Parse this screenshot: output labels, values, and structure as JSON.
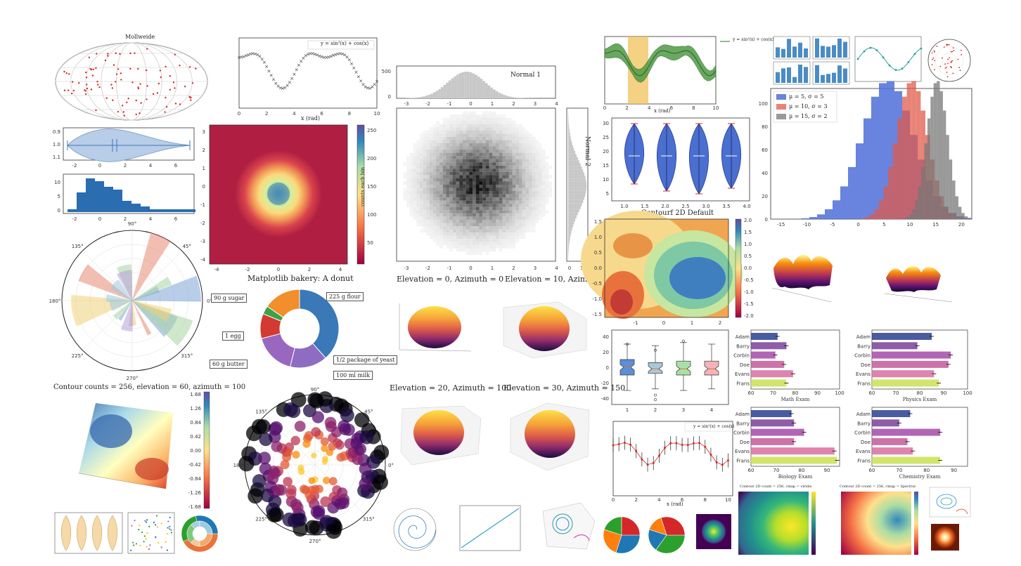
{
  "captions": {
    "mollweide": "Mollweide",
    "normal1": "Normal 1",
    "normal2": "Normal 2",
    "contourf": "Contourf 2D Default",
    "bakery": "Matplotlib bakery: A donut",
    "elev0": "Elevation = 0, Azimuth = 0",
    "elev10": "Elevation = 10, Azimuth = 50",
    "elev20": "Elevation = 20, Azimuth = 100",
    "elev30": "Elevation = 30, Azimuth = 150",
    "contour_counts": "Contour counts = 256, elevation = 60, azimuth = 100",
    "xrad": "x (rad)",
    "colorbar_label": "counts each bin"
  },
  "chart_data": [
    {
      "id": "line-cos",
      "type": "scatter",
      "legend": "y = sin²(x) + cos(x)",
      "xlabel": "x (rad)",
      "xlim": [
        0,
        10
      ],
      "ylim": [
        -2,
        2.5
      ],
      "xticks": [
        "0",
        "2",
        "4",
        "6",
        "8",
        "10"
      ]
    },
    {
      "id": "band-plot",
      "type": "area",
      "legend": "y = sin²(x) + cos(x)",
      "xlabel": "x (rad)",
      "xticks": [
        "0",
        "2",
        "4",
        "6",
        "8",
        "10"
      ]
    },
    {
      "id": "violin-horizontal",
      "type": "violin",
      "yticks": [
        "0.9",
        "1.0",
        "1.1"
      ],
      "xticks": [
        "-2",
        "0",
        "2",
        "4",
        "6"
      ]
    },
    {
      "id": "hist-skewed",
      "type": "bar",
      "yticks": [
        "0",
        "5",
        "10"
      ],
      "xticks": [
        "-2",
        "0",
        "2",
        "4",
        "6"
      ],
      "values": [
        1,
        7,
        12,
        11,
        9,
        8,
        4,
        3,
        2,
        1,
        1,
        1,
        1,
        1
      ]
    },
    {
      "id": "hexbin-donut",
      "type": "heatmap",
      "colorbar_label": "counts each bin",
      "colorbar_ticks": [
        "250",
        "200",
        "150",
        "100",
        "50"
      ],
      "xticks": [
        "-4",
        "-2",
        "0",
        "2",
        "4"
      ],
      "yticks": [
        "3",
        "2",
        "1",
        "0",
        "-1",
        "-2",
        "-3",
        "-4"
      ]
    },
    {
      "id": "normal-hist",
      "type": "bar",
      "title": "Normal 1",
      "yticks": [
        "500",
        "0"
      ],
      "xticks": [
        "-3",
        "-2",
        "-1",
        "0",
        "1",
        "2",
        "3",
        "4"
      ]
    },
    {
      "id": "normal-hist-side",
      "type": "bar",
      "title": "Normal 2",
      "xticks": [
        "0",
        "500"
      ]
    },
    {
      "id": "violin-vertical",
      "type": "violin",
      "yticks": [
        "30",
        "25",
        "20",
        "15",
        "10",
        "5"
      ],
      "xticks": [
        "1.0",
        "1.5",
        "2.0",
        "2.5",
        "3.0",
        "3.5",
        "4.0"
      ]
    },
    {
      "id": "hist-overlap",
      "type": "bar",
      "series": [
        {
          "name": "μ = 5, σ = 5",
          "color": "#4e6fd8"
        },
        {
          "name": "μ = 10, σ = 3",
          "color": "#e05a4a"
        },
        {
          "name": "μ = 15, σ = 2",
          "color": "#777777"
        }
      ],
      "yticks": [
        "100",
        "80",
        "60",
        "40",
        "20",
        "0"
      ],
      "xticks": [
        "-15",
        "-10",
        "-5",
        "0",
        "5",
        "10",
        "15",
        "20"
      ]
    },
    {
      "id": "polar-bars",
      "type": "bar",
      "angle_ticks": [
        "90°",
        "45°",
        "0°",
        "315°",
        "270°",
        "225°",
        "180°",
        "135°"
      ]
    },
    {
      "id": "donut",
      "type": "pie",
      "title": "Matplotlib bakery: A donut",
      "labels": [
        "225 g flour",
        "1/2 package of yeast",
        "100 ml milk",
        "60 g butter",
        "1 egg",
        "90 g sugar"
      ],
      "values": [
        225,
        90,
        100,
        60,
        1,
        90
      ]
    },
    {
      "id": "contourf-2d",
      "type": "heatmap",
      "title": "Contourf 2D Default",
      "colorbar_ticks": [
        "2.0",
        "1.5",
        "1.0",
        "0.5",
        "0.0",
        "-0.5",
        "-1.0",
        "-1.5",
        "-2.0"
      ],
      "xticks": [
        "-1",
        "0",
        "1",
        "2"
      ],
      "yticks": [
        "1.5",
        "1.0",
        "0.5",
        "0.0",
        "-0.5",
        "-1.0",
        "-1.5"
      ]
    },
    {
      "id": "boxplot",
      "type": "box",
      "yticks": [
        "40",
        "20",
        "0",
        "-20",
        "-40"
      ],
      "xticks": [
        "1",
        "2",
        "3",
        "4"
      ]
    },
    {
      "id": "bars-math",
      "type": "bar",
      "title": "Math Exam",
      "categories": [
        "Adam",
        "Barry",
        "Corbin",
        "Doe",
        "Evans",
        "Frans"
      ],
      "values": [
        72,
        76,
        71,
        75,
        79,
        76
      ],
      "xticks": [
        "60",
        "70",
        "80",
        "90",
        "100"
      ]
    },
    {
      "id": "bars-physics",
      "type": "bar",
      "title": "Physics Exam",
      "categories": [
        "Adam",
        "Barry",
        "Corbin",
        "Doe",
        "Evans",
        "Frans"
      ],
      "values": [
        85,
        79,
        93,
        92,
        86,
        88
      ],
      "xticks": [
        "60",
        "70",
        "80",
        "90",
        "100"
      ]
    },
    {
      "id": "bars-biology",
      "type": "bar",
      "title": "Biology Exam",
      "categories": [
        "Adam",
        "Barry",
        "Corbin",
        "Doe",
        "Evans",
        "Frans"
      ],
      "values": [
        76,
        77,
        81,
        77,
        93,
        94
      ],
      "xticks": [
        "60",
        "70",
        "80",
        "90"
      ]
    },
    {
      "id": "bars-chemistry",
      "type": "bar",
      "title": "Chemistry Exam",
      "categories": [
        "Adam",
        "Barry",
        "Corbin",
        "Doe",
        "Evans",
        "Frans"
      ],
      "values": [
        74,
        70,
        85,
        73,
        75,
        85
      ],
      "xticks": [
        "60",
        "70",
        "80",
        "90"
      ]
    },
    {
      "id": "errorbar-steps",
      "type": "line",
      "legend": "y = sin²(x) + cos(x)",
      "xlabel": "x (rad)",
      "xticks": [
        "0",
        "2",
        "4",
        "6",
        "8",
        "10"
      ],
      "yticks": [
        "3",
        "2",
        "1",
        "0",
        "-1",
        "-2"
      ]
    },
    {
      "id": "surface3d-contour",
      "type": "heatmap",
      "title": "Contour counts = 256, elevation = 60, azimuth = 100",
      "colorbar_ticks": [
        "1.68",
        "1.26",
        "0.84",
        "0.42",
        "0.00",
        "-0.42",
        "-0.84",
        "-1.26",
        "-1.68"
      ]
    },
    {
      "id": "polar-scatter",
      "type": "scatter",
      "angle_ticks": [
        "90°",
        "45°",
        "0°",
        "315°",
        "270°",
        "225°",
        "180°",
        "135°"
      ]
    },
    {
      "id": "spheres",
      "type": "surface",
      "titles": [
        "Elevation = 0, Azimuth = 0",
        "Elevation = 10, Azimuth = 50",
        "Elevation = 20, Azimuth = 100",
        "Elevation = 30, Azimuth = 150"
      ]
    },
    {
      "id": "contour-viridis",
      "type": "heatmap",
      "title": "Contour 2D count = 256, cmap = viridis"
    },
    {
      "id": "contour-spectral",
      "type": "heatmap",
      "title": "Contour 2D count = 256, cmap = Spectral"
    }
  ]
}
